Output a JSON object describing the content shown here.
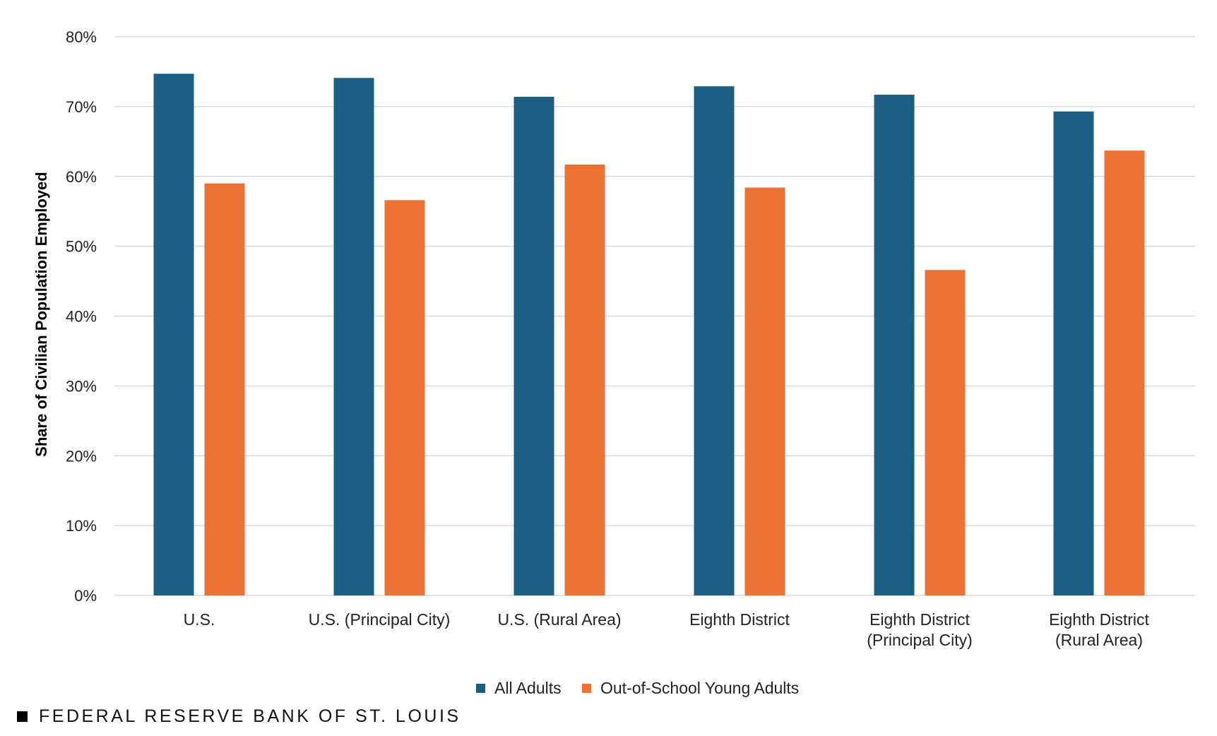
{
  "chart_data": {
    "type": "bar",
    "title": "",
    "xlabel": "",
    "ylabel": "Share of Civilian Population Employed",
    "ylim": [
      0,
      80
    ],
    "yticks": [
      {
        "value": 0,
        "label": "0%"
      },
      {
        "value": 10,
        "label": "10%"
      },
      {
        "value": 20,
        "label": "20%"
      },
      {
        "value": 30,
        "label": "30%"
      },
      {
        "value": 40,
        "label": "40%"
      },
      {
        "value": 50,
        "label": "50%"
      },
      {
        "value": 60,
        "label": "60%"
      },
      {
        "value": 70,
        "label": "70%"
      },
      {
        "value": 80,
        "label": "80%"
      }
    ],
    "grid": true,
    "legend_position": "bottom-center",
    "categories": [
      [
        "U.S."
      ],
      [
        "U.S. (Principal City)"
      ],
      [
        "U.S. (Rural Area)"
      ],
      [
        "Eighth District"
      ],
      [
        "Eighth District",
        "(Principal City)"
      ],
      [
        "Eighth District",
        "(Rural Area)"
      ]
    ],
    "series": [
      {
        "name": "All Adults",
        "color": "#1b5f82",
        "values": [
          74.7,
          74.1,
          71.4,
          72.9,
          71.7,
          69.3
        ]
      },
      {
        "name": "Out-of-School Young Adults",
        "color": "#eb7235",
        "values": [
          59.0,
          56.6,
          61.7,
          58.4,
          46.6,
          63.7
        ]
      }
    ]
  },
  "footer": {
    "source": "FEDERAL RESERVE BANK OF ST. LOUIS"
  }
}
